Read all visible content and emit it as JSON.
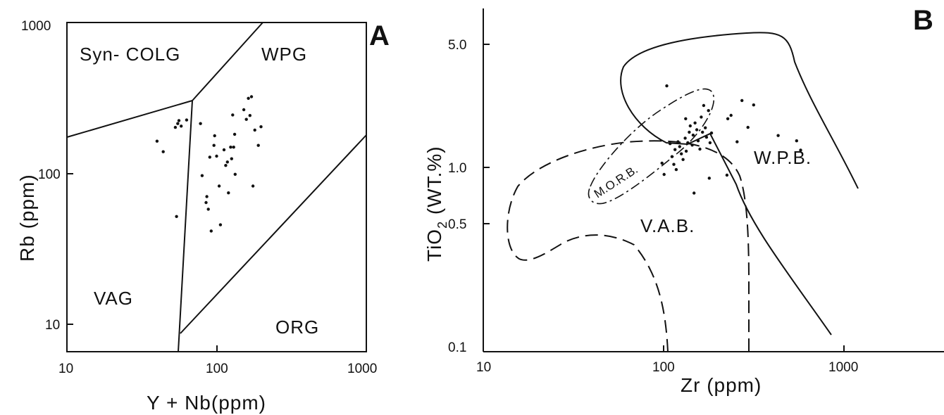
{
  "chart_data": [
    {
      "panel": "A",
      "type": "scatter",
      "xlabel": "Y + Nb(ppm)",
      "ylabel": "Rb (ppm)",
      "xscale": "log",
      "yscale": "log",
      "xlim": [
        10,
        1000
      ],
      "ylim": [
        6.2,
        1000
      ],
      "x_ticks": [
        "10",
        "100",
        "1000"
      ],
      "y_ticks": [
        "10",
        "100",
        "1000"
      ],
      "fields": [
        "Syn- COLG",
        "WPG",
        "VAG",
        "ORG"
      ],
      "points": [
        {
          "x": 40,
          "y": 160
        },
        {
          "x": 44,
          "y": 136
        },
        {
          "x": 53,
          "y": 198
        },
        {
          "x": 55,
          "y": 210
        },
        {
          "x": 56,
          "y": 220
        },
        {
          "x": 58,
          "y": 202
        },
        {
          "x": 63,
          "y": 222
        },
        {
          "x": 54,
          "y": 50
        },
        {
          "x": 78,
          "y": 210
        },
        {
          "x": 80,
          "y": 94
        },
        {
          "x": 85,
          "y": 62
        },
        {
          "x": 86,
          "y": 68
        },
        {
          "x": 88,
          "y": 56
        },
        {
          "x": 90,
          "y": 125
        },
        {
          "x": 92,
          "y": 40
        },
        {
          "x": 96,
          "y": 150
        },
        {
          "x": 97,
          "y": 174
        },
        {
          "x": 100,
          "y": 127
        },
        {
          "x": 104,
          "y": 80
        },
        {
          "x": 106,
          "y": 44
        },
        {
          "x": 112,
          "y": 140
        },
        {
          "x": 115,
          "y": 110
        },
        {
          "x": 118,
          "y": 116
        },
        {
          "x": 120,
          "y": 72
        },
        {
          "x": 124,
          "y": 146
        },
        {
          "x": 126,
          "y": 122
        },
        {
          "x": 128,
          "y": 240
        },
        {
          "x": 130,
          "y": 146
        },
        {
          "x": 132,
          "y": 178
        },
        {
          "x": 133,
          "y": 96
        },
        {
          "x": 152,
          "y": 260
        },
        {
          "x": 158,
          "y": 224
        },
        {
          "x": 163,
          "y": 310
        },
        {
          "x": 167,
          "y": 238
        },
        {
          "x": 171,
          "y": 318
        },
        {
          "x": 175,
          "y": 80
        },
        {
          "x": 180,
          "y": 190
        },
        {
          "x": 190,
          "y": 150
        },
        {
          "x": 198,
          "y": 200
        }
      ]
    },
    {
      "panel": "B",
      "type": "scatter",
      "xlabel": "Zr (ppm)",
      "ylabel": "TiO2 (WT.%)",
      "xscale": "log",
      "yscale": "log",
      "xlim": [
        10,
        4400
      ],
      "ylim": [
        0.1,
        9.5
      ],
      "x_ticks": [
        "10",
        "100",
        "1000"
      ],
      "y_ticks": [
        "0.1",
        "0.5",
        "1.0",
        "5.0"
      ],
      "fields": [
        "W.P.B.",
        "V.A.B.",
        "M.O.R.B."
      ],
      "points": [
        {
          "x": 113,
          "y": 3.4
        },
        {
          "x": 118,
          "y": 1.58
        },
        {
          "x": 121,
          "y": 1.33
        },
        {
          "x": 124,
          "y": 1.2
        },
        {
          "x": 126,
          "y": 1.46
        },
        {
          "x": 128,
          "y": 1.12
        },
        {
          "x": 131,
          "y": 1.62
        },
        {
          "x": 134,
          "y": 1.52
        },
        {
          "x": 137,
          "y": 1.38
        },
        {
          "x": 140,
          "y": 1.28
        },
        {
          "x": 144,
          "y": 1.7
        },
        {
          "x": 146,
          "y": 1.43
        },
        {
          "x": 149,
          "y": 1.6
        },
        {
          "x": 152,
          "y": 1.84
        },
        {
          "x": 154,
          "y": 2.0
        },
        {
          "x": 158,
          "y": 1.55
        },
        {
          "x": 160,
          "y": 1.77
        },
        {
          "x": 162,
          "y": 0.82
        },
        {
          "x": 164,
          "y": 2.08
        },
        {
          "x": 168,
          "y": 1.9
        },
        {
          "x": 171,
          "y": 1.64
        },
        {
          "x": 175,
          "y": 1.47
        },
        {
          "x": 178,
          "y": 2.25
        },
        {
          "x": 181,
          "y": 1.84
        },
        {
          "x": 184,
          "y": 2.62
        },
        {
          "x": 188,
          "y": 1.95
        },
        {
          "x": 191,
          "y": 1.72
        },
        {
          "x": 196,
          "y": 2.45
        },
        {
          "x": 200,
          "y": 1.6
        },
        {
          "x": 204,
          "y": 1.82
        },
        {
          "x": 198,
          "y": 1.0
        },
        {
          "x": 109,
          "y": 1.05
        },
        {
          "x": 106,
          "y": 1.22
        },
        {
          "x": 145,
          "y": 2.2
        },
        {
          "x": 250,
          "y": 1.04
        },
        {
          "x": 253,
          "y": 2.2
        },
        {
          "x": 264,
          "y": 2.3
        },
        {
          "x": 286,
          "y": 1.62
        },
        {
          "x": 305,
          "y": 2.8
        },
        {
          "x": 330,
          "y": 1.96
        },
        {
          "x": 356,
          "y": 2.64
        },
        {
          "x": 492,
          "y": 1.76
        },
        {
          "x": 628,
          "y": 1.64
        },
        {
          "x": 662,
          "y": 1.45
        }
      ]
    }
  ]
}
